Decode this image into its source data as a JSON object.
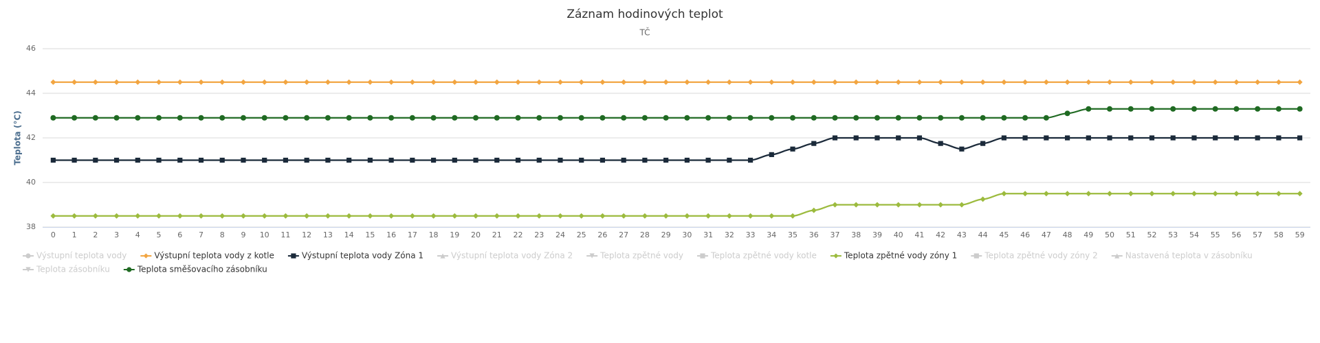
{
  "chart_data": {
    "type": "spline",
    "title": "Záznam hodinových teplot",
    "subtitle": "TČ",
    "y_label": "Teplota (°C)",
    "categories": [
      "0",
      "1",
      "2",
      "3",
      "4",
      "5",
      "6",
      "7",
      "8",
      "9",
      "10",
      "11",
      "12",
      "13",
      "14",
      "15",
      "16",
      "17",
      "18",
      "19",
      "20",
      "21",
      "22",
      "23",
      "24",
      "25",
      "26",
      "27",
      "28",
      "29",
      "30",
      "31",
      "32",
      "33",
      "34",
      "35",
      "36",
      "37",
      "38",
      "39",
      "40",
      "41",
      "42",
      "43",
      "44",
      "45",
      "46",
      "47",
      "48",
      "49",
      "50",
      "51",
      "52",
      "53",
      "54",
      "55",
      "56",
      "57",
      "58",
      "59"
    ],
    "ylim": [
      38,
      46
    ],
    "yticks": [
      38,
      40,
      42,
      44,
      46
    ],
    "grid": true,
    "legend": "bottom",
    "series": [
      {
        "name": "Výstupní teplota vody",
        "visible": false,
        "marker": "circle"
      },
      {
        "name": "Výstupní teplota vody z kotle",
        "color": "#f2a541",
        "marker": "diamond",
        "values": [
          44.5,
          44.5,
          44.5,
          44.5,
          44.5,
          44.5,
          44.5,
          44.5,
          44.5,
          44.5,
          44.5,
          44.5,
          44.5,
          44.5,
          44.5,
          44.5,
          44.5,
          44.5,
          44.5,
          44.5,
          44.5,
          44.5,
          44.5,
          44.5,
          44.5,
          44.5,
          44.5,
          44.5,
          44.5,
          44.5,
          44.5,
          44.5,
          44.5,
          44.5,
          44.5,
          44.5,
          44.5,
          44.5,
          44.5,
          44.5,
          44.5,
          44.5,
          44.5,
          44.5,
          44.5,
          44.5,
          44.5,
          44.5,
          44.5,
          44.5,
          44.5,
          44.5,
          44.5,
          44.5,
          44.5,
          44.5,
          44.5,
          44.5,
          44.5,
          44.5
        ]
      },
      {
        "name": "Výstupní teplota vody Zóna 1",
        "color": "#1b2a3a",
        "marker": "square",
        "values": [
          41,
          41,
          41,
          41,
          41,
          41,
          41,
          41,
          41,
          41,
          41,
          41,
          41,
          41,
          41,
          41,
          41,
          41,
          41,
          41,
          41,
          41,
          41,
          41,
          41,
          41,
          41,
          41,
          41,
          41,
          41,
          41,
          41,
          41,
          41.25,
          41.5,
          41.75,
          42,
          42,
          42,
          42,
          42,
          41.75,
          41.5,
          41.75,
          42,
          42,
          42,
          42,
          42,
          42,
          42,
          42,
          42,
          42,
          42,
          42,
          42,
          42,
          42
        ]
      },
      {
        "name": "Výstupní teplota vody Zóna 2",
        "visible": false,
        "marker": "triangle"
      },
      {
        "name": "Teplota zpětné vody",
        "visible": false,
        "marker": "triangle-down"
      },
      {
        "name": "Teplota zpětné vody kotle",
        "visible": false,
        "marker": "square"
      },
      {
        "name": "Teplota zpětné vody zóny 1",
        "color": "#9cbb3e",
        "marker": "diamond",
        "values": [
          38.5,
          38.5,
          38.5,
          38.5,
          38.5,
          38.5,
          38.5,
          38.5,
          38.5,
          38.5,
          38.5,
          38.5,
          38.5,
          38.5,
          38.5,
          38.5,
          38.5,
          38.5,
          38.5,
          38.5,
          38.5,
          38.5,
          38.5,
          38.5,
          38.5,
          38.5,
          38.5,
          38.5,
          38.5,
          38.5,
          38.5,
          38.5,
          38.5,
          38.5,
          38.5,
          38.5,
          38.75,
          39,
          39,
          39,
          39,
          39,
          39,
          39,
          39.25,
          39.5,
          39.5,
          39.5,
          39.5,
          39.5,
          39.5,
          39.5,
          39.5,
          39.5,
          39.5,
          39.5,
          39.5,
          39.5,
          39.5,
          39.5
        ]
      },
      {
        "name": "Teplota zpětné vody zóny 2",
        "visible": false,
        "marker": "square"
      },
      {
        "name": "Nastavená teplota v zásobníku",
        "visible": false,
        "marker": "triangle"
      },
      {
        "name": "Teplota zásobníku",
        "visible": false,
        "marker": "triangle-down"
      },
      {
        "name": "Teplota směšovacího zásobníku",
        "color": "#1f6a22",
        "marker": "circle",
        "values": [
          42.9,
          42.9,
          42.9,
          42.9,
          42.9,
          42.9,
          42.9,
          42.9,
          42.9,
          42.9,
          42.9,
          42.9,
          42.9,
          42.9,
          42.9,
          42.9,
          42.9,
          42.9,
          42.9,
          42.9,
          42.9,
          42.9,
          42.9,
          42.9,
          42.9,
          42.9,
          42.9,
          42.9,
          42.9,
          42.9,
          42.9,
          42.9,
          42.9,
          42.9,
          42.9,
          42.9,
          42.9,
          42.9,
          42.9,
          42.9,
          42.9,
          42.9,
          42.9,
          42.9,
          42.9,
          42.9,
          42.9,
          42.9,
          43.1,
          43.3,
          43.3,
          43.3,
          43.3,
          43.3,
          43.3,
          43.3,
          43.3,
          43.3,
          43.3,
          43.3
        ]
      }
    ]
  }
}
